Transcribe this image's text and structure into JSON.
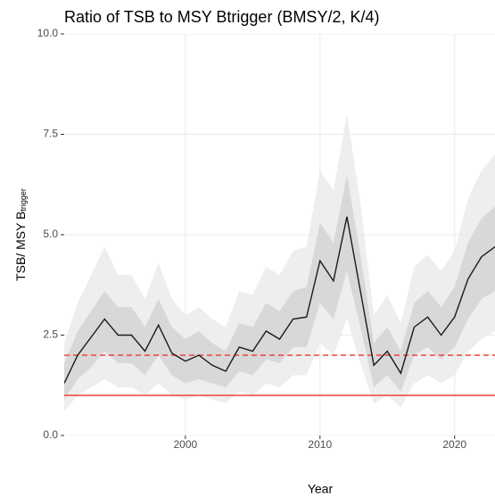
{
  "chart_data": {
    "type": "line",
    "title": "Ratio of TSB to MSY Btrigger (BMSY/2, K/4)",
    "x_label": "Year",
    "y_label": {
      "main": "TSB/ MSY B",
      "sub": "trigger"
    },
    "x": [
      1991,
      1992,
      1993,
      1994,
      1995,
      1996,
      1997,
      1998,
      1999,
      2000,
      2001,
      2002,
      2003,
      2004,
      2005,
      2006,
      2007,
      2008,
      2009,
      2010,
      2011,
      2012,
      2013,
      2014,
      2015,
      2016,
      2017,
      2018,
      2019,
      2020,
      2021,
      2022,
      2023
    ],
    "values": [
      1.3,
      2.0,
      2.45,
      2.9,
      2.5,
      2.5,
      2.1,
      2.75,
      2.05,
      1.85,
      2.0,
      1.75,
      1.6,
      2.2,
      2.1,
      2.6,
      2.4,
      2.9,
      2.95,
      4.35,
      3.85,
      5.45,
      3.6,
      1.75,
      2.1,
      1.55,
      2.7,
      2.95,
      2.5,
      2.95,
      3.9,
      4.45,
      4.7
    ],
    "color": "#1a1a1a",
    "outer_band": {
      "color": "#ebebeb",
      "upper": [
        2.3,
        3.3,
        4.0,
        4.7,
        4.0,
        4.0,
        3.4,
        4.3,
        3.4,
        3.0,
        3.2,
        2.9,
        2.7,
        3.6,
        3.5,
        4.2,
        4.0,
        4.6,
        4.7,
        6.6,
        6.1,
        8.0,
        5.8,
        3.0,
        3.5,
        2.8,
        4.2,
        4.5,
        4.1,
        4.6,
        5.9,
        6.6,
        7.0
      ],
      "lower": [
        0.6,
        1.0,
        1.2,
        1.4,
        1.2,
        1.2,
        1.0,
        1.3,
        1.0,
        0.9,
        1.0,
        0.9,
        0.8,
        1.1,
        1.0,
        1.3,
        1.2,
        1.5,
        1.5,
        2.3,
        2.0,
        2.9,
        1.8,
        0.8,
        1.0,
        0.7,
        1.3,
        1.5,
        1.3,
        1.5,
        2.1,
        2.4,
        2.6
      ]
    },
    "inner_band": {
      "color": "#d4d4d4",
      "upper": [
        1.8,
        2.6,
        3.1,
        3.6,
        3.2,
        3.2,
        2.7,
        3.4,
        2.7,
        2.4,
        2.6,
        2.3,
        2.1,
        2.8,
        2.7,
        3.3,
        3.1,
        3.6,
        3.7,
        5.3,
        4.8,
        6.5,
        4.5,
        2.3,
        2.7,
        2.1,
        3.3,
        3.6,
        3.2,
        3.7,
        4.8,
        5.4,
        5.7
      ],
      "lower": [
        0.9,
        1.4,
        1.7,
        2.1,
        1.8,
        1.8,
        1.5,
        2.0,
        1.5,
        1.3,
        1.4,
        1.3,
        1.2,
        1.6,
        1.5,
        1.9,
        1.8,
        2.2,
        2.2,
        3.3,
        2.9,
        4.1,
        2.7,
        1.2,
        1.5,
        1.1,
        2.0,
        2.2,
        1.9,
        2.2,
        2.9,
        3.4,
        3.6
      ]
    },
    "hlines": [
      {
        "value": 2,
        "color": "#f0413c",
        "dashed": true
      },
      {
        "value": 1,
        "color": "#f0413c",
        "dashed": false
      }
    ],
    "xlim": [
      1991,
      2023
    ],
    "xticks": [
      2000,
      2010,
      2020
    ],
    "ylim": [
      0,
      10
    ],
    "yticks": [
      {
        "value": 0,
        "label": "0.0"
      },
      {
        "value": 2.5,
        "label": "2.5"
      },
      {
        "value": 5,
        "label": "5.0"
      },
      {
        "value": 7.5,
        "label": "7.5"
      },
      {
        "value": 10,
        "label": "10.0"
      }
    ],
    "grid": true
  }
}
